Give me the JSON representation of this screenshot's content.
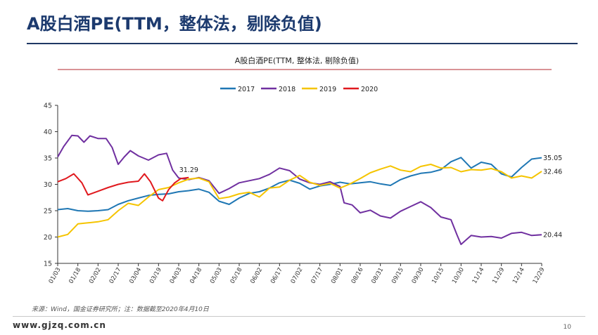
{
  "slide": {
    "title": "A股白酒PE(TTM，整体法，剔除负值)",
    "note": "来源：Wind，国金证券研究所；注：数据截至2020年4月10日",
    "site_url": "www.gjzq.com.cn",
    "page_number": "10"
  },
  "colors": {
    "title": "#1c3a6e",
    "rule": "#1f3864",
    "s2017": "#1f77b4",
    "s2018": "#7030a0",
    "s2019": "#f5c400",
    "s2020": "#e0191e"
  },
  "chart_data": {
    "type": "line",
    "title": "A股白酒PE(TTM, 整体法, 剔除负值)",
    "xlabel": "",
    "ylabel": "",
    "ylim": [
      15,
      45
    ],
    "yticks": [
      "15",
      "20",
      "25",
      "30",
      "35",
      "40",
      "45"
    ],
    "x_tick_labels": [
      "01/03",
      "01/18",
      "02/02",
      "02/17",
      "03/04",
      "03/19",
      "04/03",
      "04/18",
      "05/03",
      "05/18",
      "06/02",
      "06/17",
      "07/02",
      "07/17",
      "08/01",
      "08/16",
      "08/31",
      "09/15",
      "09/30",
      "10/15",
      "10/30",
      "11/14",
      "11/29",
      "12/14",
      "12/29"
    ],
    "grid": false,
    "legend_position": "top",
    "series": [
      {
        "name": "2017",
        "color": "#1f77b4",
        "points": [
          [
            0,
            25.2
          ],
          [
            0.5,
            25.4
          ],
          [
            1,
            25.0
          ],
          [
            1.5,
            24.9
          ],
          [
            2,
            25.0
          ],
          [
            2.5,
            25.2
          ],
          [
            3,
            26.2
          ],
          [
            3.5,
            26.9
          ],
          [
            4,
            27.4
          ],
          [
            4.5,
            27.9
          ],
          [
            5,
            28.1
          ],
          [
            5.5,
            28.2
          ],
          [
            6,
            28.6
          ],
          [
            6.5,
            28.8
          ],
          [
            7,
            29.1
          ],
          [
            7.5,
            28.5
          ],
          [
            8,
            26.8
          ],
          [
            8.5,
            26.2
          ],
          [
            9,
            27.4
          ],
          [
            9.5,
            28.3
          ],
          [
            10,
            28.6
          ],
          [
            10.5,
            29.3
          ],
          [
            11,
            30.3
          ],
          [
            11.5,
            30.8
          ],
          [
            12,
            30.2
          ],
          [
            12.5,
            29.1
          ],
          [
            13,
            29.7
          ],
          [
            13.5,
            30.0
          ],
          [
            14,
            30.4
          ],
          [
            14.5,
            30.1
          ],
          [
            15,
            30.3
          ],
          [
            15.5,
            30.5
          ],
          [
            16,
            30.1
          ],
          [
            16.5,
            29.8
          ],
          [
            17,
            30.9
          ],
          [
            17.5,
            31.6
          ],
          [
            18,
            32.1
          ],
          [
            18.5,
            32.3
          ],
          [
            19,
            32.8
          ],
          [
            19.5,
            34.3
          ],
          [
            20,
            35.1
          ],
          [
            20.5,
            33.1
          ],
          [
            21,
            34.2
          ],
          [
            21.5,
            33.8
          ],
          [
            22,
            32.0
          ],
          [
            22.5,
            31.4
          ],
          [
            23,
            33.2
          ],
          [
            23.5,
            34.8
          ],
          [
            24,
            35.05
          ]
        ]
      },
      {
        "name": "2018",
        "color": "#7030a0",
        "points": [
          [
            0,
            35.2
          ],
          [
            0.3,
            37.2
          ],
          [
            0.7,
            39.3
          ],
          [
            1,
            39.2
          ],
          [
            1.3,
            38.0
          ],
          [
            1.6,
            39.2
          ],
          [
            2,
            38.7
          ],
          [
            2.4,
            38.7
          ],
          [
            2.7,
            37.0
          ],
          [
            3,
            33.8
          ],
          [
            3.3,
            35.2
          ],
          [
            3.6,
            36.4
          ],
          [
            4,
            35.4
          ],
          [
            4.5,
            34.6
          ],
          [
            5,
            35.6
          ],
          [
            5.4,
            35.9
          ],
          [
            5.7,
            32.7
          ],
          [
            6,
            31.2
          ],
          [
            6.5,
            30.9
          ],
          [
            7,
            31.3
          ],
          [
            7.5,
            30.7
          ],
          [
            8,
            28.3
          ],
          [
            8.5,
            29.2
          ],
          [
            9,
            30.3
          ],
          [
            9.5,
            30.7
          ],
          [
            10,
            31.1
          ],
          [
            10.5,
            31.9
          ],
          [
            11,
            33.1
          ],
          [
            11.5,
            32.6
          ],
          [
            12,
            31.0
          ],
          [
            12.5,
            30.3
          ],
          [
            13,
            30.0
          ],
          [
            13.5,
            30.5
          ],
          [
            14,
            29.6
          ],
          [
            14.2,
            26.5
          ],
          [
            14.6,
            26.1
          ],
          [
            15,
            24.6
          ],
          [
            15.5,
            25.1
          ],
          [
            16,
            24.0
          ],
          [
            16.5,
            23.6
          ],
          [
            17,
            24.9
          ],
          [
            17.5,
            25.8
          ],
          [
            18,
            26.7
          ],
          [
            18.5,
            25.6
          ],
          [
            19,
            23.8
          ],
          [
            19.5,
            23.3
          ],
          [
            19.8,
            20.4
          ],
          [
            20,
            18.6
          ],
          [
            20.5,
            20.3
          ],
          [
            21,
            20.0
          ],
          [
            21.5,
            20.1
          ],
          [
            22,
            19.8
          ],
          [
            22.5,
            20.7
          ],
          [
            23,
            20.9
          ],
          [
            23.5,
            20.3
          ],
          [
            24,
            20.44
          ]
        ]
      },
      {
        "name": "2019",
        "color": "#f5c400",
        "points": [
          [
            0,
            20.0
          ],
          [
            0.5,
            20.5
          ],
          [
            1,
            22.5
          ],
          [
            1.5,
            22.7
          ],
          [
            2,
            22.9
          ],
          [
            2.5,
            23.3
          ],
          [
            3,
            25.0
          ],
          [
            3.5,
            26.4
          ],
          [
            4,
            26.0
          ],
          [
            4.5,
            27.6
          ],
          [
            5,
            29.0
          ],
          [
            5.5,
            29.4
          ],
          [
            6,
            30.3
          ],
          [
            6.5,
            31.0
          ],
          [
            7,
            31.2
          ],
          [
            7.5,
            30.5
          ],
          [
            8,
            27.3
          ],
          [
            8.5,
            27.6
          ],
          [
            9,
            28.2
          ],
          [
            9.5,
            28.5
          ],
          [
            10,
            27.6
          ],
          [
            10.5,
            29.3
          ],
          [
            11,
            29.5
          ],
          [
            11.5,
            30.8
          ],
          [
            12,
            31.7
          ],
          [
            12.5,
            30.4
          ],
          [
            13,
            29.8
          ],
          [
            13.5,
            30.2
          ],
          [
            14,
            29.3
          ],
          [
            14.5,
            30.1
          ],
          [
            15,
            31.1
          ],
          [
            15.5,
            32.2
          ],
          [
            16,
            32.9
          ],
          [
            16.5,
            33.5
          ],
          [
            17,
            32.7
          ],
          [
            17.5,
            32.4
          ],
          [
            18,
            33.4
          ],
          [
            18.5,
            33.8
          ],
          [
            19,
            33.1
          ],
          [
            19.5,
            33.2
          ],
          [
            20,
            32.4
          ],
          [
            20.5,
            32.8
          ],
          [
            21,
            32.7
          ],
          [
            21.5,
            33.0
          ],
          [
            22,
            32.4
          ],
          [
            22.5,
            31.2
          ],
          [
            23,
            31.6
          ],
          [
            23.5,
            31.2
          ],
          [
            24,
            32.46
          ]
        ]
      },
      {
        "name": "2020",
        "color": "#e0191e",
        "points": [
          [
            0,
            30.5
          ],
          [
            0.4,
            31.1
          ],
          [
            0.8,
            32.0
          ],
          [
            1.2,
            30.3
          ],
          [
            1.5,
            28.0
          ],
          [
            2,
            28.7
          ],
          [
            2.5,
            29.4
          ],
          [
            3,
            30.0
          ],
          [
            3.5,
            30.4
          ],
          [
            4,
            30.6
          ],
          [
            4.3,
            32.0
          ],
          [
            4.6,
            30.5
          ],
          [
            5,
            27.4
          ],
          [
            5.2,
            26.9
          ],
          [
            5.5,
            29.0
          ],
          [
            5.8,
            30.3
          ],
          [
            6.1,
            31.1
          ],
          [
            6.5,
            31.29
          ]
        ]
      }
    ],
    "annotations": [
      {
        "text": "31.29",
        "x": 6.5,
        "y": 31.29
      },
      {
        "text": "35.05",
        "x": 24,
        "y": 35.05
      },
      {
        "text": "32.46",
        "x": 24,
        "y": 32.46
      },
      {
        "text": "20.44",
        "x": 24,
        "y": 20.44
      }
    ]
  }
}
